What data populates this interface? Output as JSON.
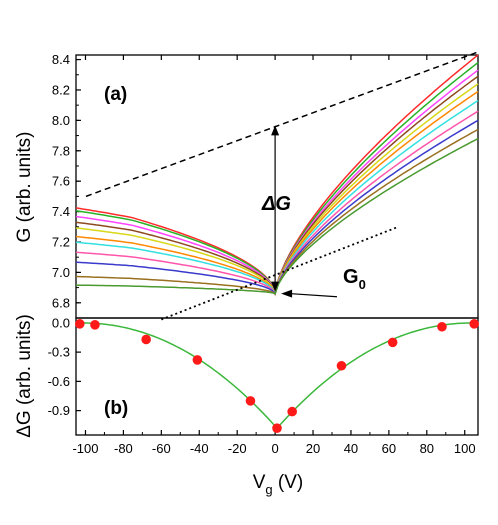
{
  "chart_data": [
    {
      "panel_label": "(a)",
      "type": "line",
      "ylabel": "G (arb. units)",
      "xlim": [
        -105,
        107
      ],
      "ylim": [
        6.7,
        8.43
      ],
      "yticks": [
        "6.8",
        "7.0",
        "7.2",
        "7.4",
        "7.6",
        "7.8",
        "8.0",
        "8.2",
        "8.4"
      ],
      "series_colors": [
        "#ff2b2b",
        "#27b327",
        "#ff44ff",
        "#8d4a20",
        "#d8d818",
        "#ff8800",
        "#33e0e0",
        "#ff55aa",
        "#3a3acc",
        "#9a7020",
        "#4a9a30"
      ],
      "series": [
        {
          "left_y": 7.46,
          "right_y": 8.43
        },
        {
          "left_y": 7.44,
          "right_y": 8.38
        },
        {
          "left_y": 7.4,
          "right_y": 8.33
        },
        {
          "left_y": 7.36,
          "right_y": 8.29
        },
        {
          "left_y": 7.32,
          "right_y": 8.24
        },
        {
          "left_y": 7.26,
          "right_y": 8.19
        },
        {
          "left_y": 7.22,
          "right_y": 8.13
        },
        {
          "left_y": 7.15,
          "right_y": 8.06
        },
        {
          "left_y": 7.08,
          "right_y": 8.0
        },
        {
          "left_y": 6.98,
          "right_y": 7.94
        },
        {
          "left_y": 6.92,
          "right_y": 7.88
        }
      ],
      "vertex": {
        "x": 0,
        "y": 6.86
      },
      "dashed_line": {
        "x": [
          -105,
          107
        ],
        "y": [
          7.5,
          8.45
        ]
      },
      "dotted_line": {
        "x": [
          -60,
          65
        ],
        "y": [
          6.69,
          7.3
        ]
      },
      "annotations": {
        "delta_g": "ΔG",
        "g0": "G",
        "g0_sub": "0"
      }
    },
    {
      "panel_label": "(b)",
      "type": "scatter",
      "xlabel": "V",
      "xlabel_sub": "g",
      "xlabel_unit": " (V)",
      "ylabel": "ΔG (arb. units)",
      "xlim": [
        -105,
        107
      ],
      "ylim": [
        -1.15,
        0.05
      ],
      "xticks": [
        "-100",
        "-80",
        "-60",
        "-40",
        "-20",
        "0",
        "20",
        "40",
        "60",
        "80",
        "100"
      ],
      "yticks": [
        "0.0",
        "-0.3",
        "-0.6",
        "-0.9"
      ],
      "points": [
        {
          "x": -103,
          "y": -0.01
        },
        {
          "x": -95,
          "y": -0.02
        },
        {
          "x": -68,
          "y": -0.17
        },
        {
          "x": -41,
          "y": -0.38
        },
        {
          "x": -13,
          "y": -0.8
        },
        {
          "x": 1,
          "y": -1.08
        },
        {
          "x": 9,
          "y": -0.91
        },
        {
          "x": 35,
          "y": -0.44
        },
        {
          "x": 62,
          "y": -0.2
        },
        {
          "x": 88,
          "y": -0.04
        },
        {
          "x": 105,
          "y": -0.01
        }
      ],
      "point_color": "#ff1a1a",
      "fit_color": "#3cb83c"
    }
  ]
}
